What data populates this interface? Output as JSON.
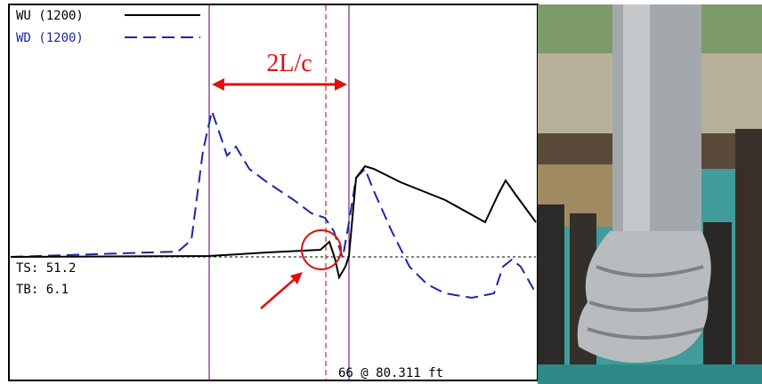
{
  "plot": {
    "legend": [
      "WU (1200)",
      "WD (1200)"
    ],
    "annotation": "2L/c",
    "readouts": [
      "TS: 51.2",
      "TB: 6.1"
    ],
    "footer": "66 @ 80.311 ft"
  }
}
